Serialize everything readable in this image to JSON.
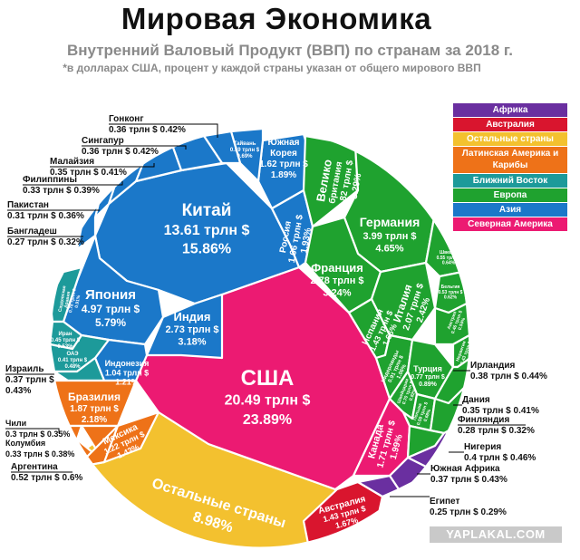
{
  "title": "Мировая Экономика",
  "subtitle": "Внутренний Валовый Продукт (ВВП) по странам за 2018 г.",
  "note": "*в долларах США, процент у каждой страны указан от общего мирового ВВП",
  "watermark": "YAPLAKAL.COM",
  "colors": {
    "Африка": "#6a2fa0",
    "Австралия": "#d9152e",
    "Остальные страны": "#f3c12f",
    "Латинская Америка и Карибы": "#ee7218",
    "Ближний Восток": "#1d9a9a",
    "Европа": "#1fa22f",
    "Азия": "#1b78c9",
    "Северная Америка": "#ec1a72"
  },
  "chart_data": {
    "type": "voronoi-treemap",
    "unit": "трлн $",
    "legend": [
      "Африка",
      "Австралия",
      "Остальные страны",
      "Латинская Америка и Карибы",
      "Ближний Восток",
      "Европа",
      "Азия",
      "Северная Америка"
    ],
    "legend_placement": "top-right",
    "countries": [
      {
        "name": "США",
        "value": "20.49 трлн $",
        "share": "23.89%",
        "region": "Северная Америка"
      },
      {
        "name": "Канада",
        "value": "1.71 трлн $",
        "share": "1.99%",
        "region": "Северная Америка"
      },
      {
        "name": "Китай",
        "value": "13.61 трлн $",
        "share": "15.86%",
        "region": "Азия"
      },
      {
        "name": "Япония",
        "value": "4.97 трлн $",
        "share": "5.79%",
        "region": "Азия"
      },
      {
        "name": "Индия",
        "value": "2.73 трлн $",
        "share": "3.18%",
        "region": "Азия"
      },
      {
        "name": "Россия",
        "value": "1.66 трлн $",
        "share": "1.93%",
        "region": "Азия"
      },
      {
        "name": "Южная Корея",
        "value": "1.62 трлн $",
        "share": "1.89%",
        "region": "Азия"
      },
      {
        "name": "Индонезия",
        "value": "1.04 трлн $",
        "share": "1.21%",
        "region": "Азия"
      },
      {
        "name": "Тайвань",
        "value": "0.59 трлн $",
        "share": "0.69%",
        "region": "Азия"
      },
      {
        "name": "Гонконг",
        "value": "0.36 трлн $",
        "share": "0.42%",
        "region": "Азия"
      },
      {
        "name": "Сингапур",
        "value": "0.36 трлн $",
        "share": "0.42%",
        "region": "Азия"
      },
      {
        "name": "Малайзия",
        "value": "0.35 трлн $",
        "share": "0.41%",
        "region": "Азия"
      },
      {
        "name": "Филиппины",
        "value": "0.33 трлн $",
        "share": "0.39%",
        "region": "Азия"
      },
      {
        "name": "Пакистан",
        "value": "0.31 трлн $",
        "share": "0.36%",
        "region": "Азия"
      },
      {
        "name": "Бангладеш",
        "value": "0.27 трлн $",
        "share": "0.32%",
        "region": "Азия"
      },
      {
        "name": "Германия",
        "value": "3.99 трлн $",
        "share": "4.65%",
        "region": "Европа"
      },
      {
        "name": "Великобритания",
        "value": "2.82 трлн $",
        "share": "3.29%",
        "region": "Европа"
      },
      {
        "name": "Франция",
        "value": "2.78 трлн $",
        "share": "3.24%",
        "region": "Европа"
      },
      {
        "name": "Италия",
        "value": "2.07 трлн $",
        "share": "2.42%",
        "region": "Европа"
      },
      {
        "name": "Испания",
        "value": "1.43 трлн $",
        "share": "1.66%",
        "region": "Европа"
      },
      {
        "name": "Нидерланды",
        "value": "0.91 трлн $",
        "share": "1.06%",
        "region": "Европа"
      },
      {
        "name": "Турция",
        "value": "0.77 трлн $",
        "share": "0.89%",
        "region": "Европа"
      },
      {
        "name": "Швейцария",
        "value": "0.70 трлн $",
        "share": "0.82%",
        "region": "Европа"
      },
      {
        "name": "Польша",
        "value": "0.59 трлн $",
        "share": "0.68%",
        "region": "Европа"
      },
      {
        "name": "Швеция",
        "value": "0.55 трлн $",
        "share": "0.64%",
        "region": "Европа"
      },
      {
        "name": "Бельгия",
        "value": "0.53 трлн $",
        "share": "0.62%",
        "region": "Европа"
      },
      {
        "name": "Австрия",
        "value": "0.46 трлн $",
        "share": "0.54%",
        "region": "Европа"
      },
      {
        "name": "Норвегия",
        "value": "0.43 трлн $",
        "share": "0.51%",
        "region": "Европа"
      },
      {
        "name": "Ирландия",
        "value": "0.38 трлн $",
        "share": "0.44%",
        "region": "Европа"
      },
      {
        "name": "Дания",
        "value": "0.35 трлн $",
        "share": "0.41%",
        "region": "Европа"
      },
      {
        "name": "Финляндия",
        "value": "0.28 трлн $",
        "share": "0.32%",
        "region": "Европа"
      },
      {
        "name": "Саудовская Аравия",
        "value": "0.78 трлн $",
        "share": "0.91%",
        "region": "Ближний Восток"
      },
      {
        "name": "Иран",
        "value": "0.45 трлн $",
        "share": "0.53%",
        "region": "Ближний Восток"
      },
      {
        "name": "ОАЭ",
        "value": "0.41 трлн $",
        "share": "0.48%",
        "region": "Ближний Восток"
      },
      {
        "name": "Израиль",
        "value": "0.37 трлн $",
        "share": "0.43%",
        "region": "Ближний Восток"
      },
      {
        "name": "Бразилия",
        "value": "1.87 трлн $",
        "share": "2.18%",
        "region": "Латинская Америка и Карибы"
      },
      {
        "name": "Мексика",
        "value": "1.22 трлн $",
        "share": "1.43%",
        "region": "Латинская Америка и Карибы"
      },
      {
        "name": "Аргентина",
        "value": "0.52 трлн $",
        "share": "0.6%",
        "region": "Латинская Америка и Карибы"
      },
      {
        "name": "Колумбия",
        "value": "0.33 трлн $",
        "share": "0.38%",
        "region": "Латинская Америка и Карибы"
      },
      {
        "name": "Чили",
        "value": "0.3 трлн $",
        "share": "0.35%",
        "region": "Латинская Америка и Карибы"
      },
      {
        "name": "Австралия",
        "value": "1.43 трлн $",
        "share": "1.67%",
        "region": "Австралия"
      },
      {
        "name": "Нигерия",
        "value": "0.4 трлн $",
        "share": "0.46%",
        "region": "Африка"
      },
      {
        "name": "Южная Африка",
        "value": "0.37 трлн $",
        "share": "0.43%",
        "region": "Африка"
      },
      {
        "name": "Египет",
        "value": "0.25 трлн $",
        "share": "0.29%",
        "region": "Африка"
      },
      {
        "name": "Остальные страны",
        "value": "",
        "share": "8.98%",
        "region": "Остальные страны"
      }
    ]
  }
}
